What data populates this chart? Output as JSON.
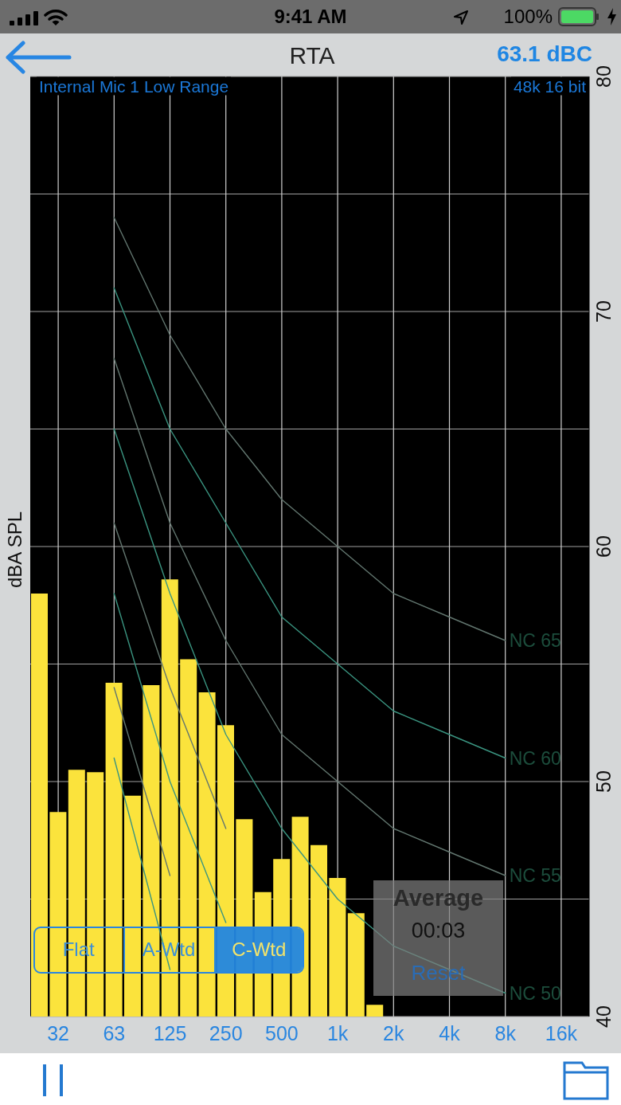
{
  "chart_data": {
    "type": "bar",
    "title": "RTA",
    "ylabel": "dBA SPL",
    "categories": [
      null,
      "32",
      null,
      null,
      "63",
      null,
      null,
      "125",
      null,
      null,
      "250",
      null,
      null,
      "500",
      null,
      null,
      "1k",
      null,
      null,
      "2k",
      null,
      null,
      "4k",
      null,
      null,
      "8k",
      null,
      null,
      "16k",
      null
    ],
    "series": [
      {
        "color": "#fbe33c",
        "values": [
          58.0,
          48.7,
          50.5,
          50.4,
          54.2,
          49.4,
          54.1,
          58.6,
          55.2,
          53.8,
          52.4,
          48.4,
          45.3,
          46.7,
          48.5,
          47.3,
          45.9,
          44.4,
          40.5,
          null,
          null,
          null,
          null,
          null,
          null,
          null,
          null,
          null,
          null,
          null
        ]
      },
      {
        "type": "line",
        "name": "NC 65",
        "color": "#62766f",
        "x": [
          "63",
          "125",
          "250",
          "500",
          "1k",
          "2k",
          "4k",
          "8k"
        ],
        "values": [
          74,
          69,
          65,
          62,
          60,
          58,
          57,
          56
        ]
      },
      {
        "type": "line",
        "name": "NC 60",
        "color": "#3a9480",
        "x": [
          "63",
          "125",
          "250",
          "500",
          "1k",
          "2k",
          "4k",
          "8k"
        ],
        "values": [
          71,
          65,
          61,
          57,
          55,
          53,
          52,
          51
        ]
      },
      {
        "type": "line",
        "name": "NC 55",
        "color": "#62766f",
        "x": [
          "63",
          "125",
          "250",
          "500",
          "1k",
          "2k",
          "4k",
          "8k"
        ],
        "values": [
          68,
          61,
          56,
          52,
          50,
          48,
          47,
          46
        ]
      },
      {
        "type": "line",
        "name": "NC 50",
        "color": "#3a9480",
        "x": [
          "63",
          "125",
          "250",
          "500",
          "1k",
          "2k",
          "4k",
          "8k"
        ],
        "values": [
          65,
          58,
          52,
          48,
          45,
          43,
          42,
          41
        ]
      },
      {
        "type": "line",
        "color": "#62766f",
        "x": [
          "63",
          "125",
          "250"
        ],
        "values": [
          61,
          54,
          48
        ]
      },
      {
        "type": "line",
        "color": "#3a9480",
        "x": [
          "63",
          "125",
          "250"
        ],
        "values": [
          58,
          50,
          44
        ]
      },
      {
        "type": "line",
        "color": "#62766f",
        "x": [
          "63",
          "125"
        ],
        "values": [
          54,
          46
        ]
      },
      {
        "type": "line",
        "color": "#3a9480",
        "x": [
          "63",
          "125"
        ],
        "values": [
          51,
          42
        ]
      }
    ],
    "ylim": [
      40,
      80
    ],
    "yticks": [
      40,
      {
        "value": 45,
        "label": null
      },
      50,
      {
        "value": 55,
        "label": null
      },
      60,
      {
        "value": 65,
        "label": null
      },
      70,
      {
        "value": 75,
        "label": null
      },
      80
    ],
    "grid": true,
    "annotations": [
      "9:41 AM",
      "100%",
      "63.1 dBC",
      "Internal Mic 1 Low Range",
      "48k 16 bit",
      "Flat",
      "A-Wtd",
      "C-Wtd",
      "Average",
      "00:03",
      "Reset"
    ]
  }
}
